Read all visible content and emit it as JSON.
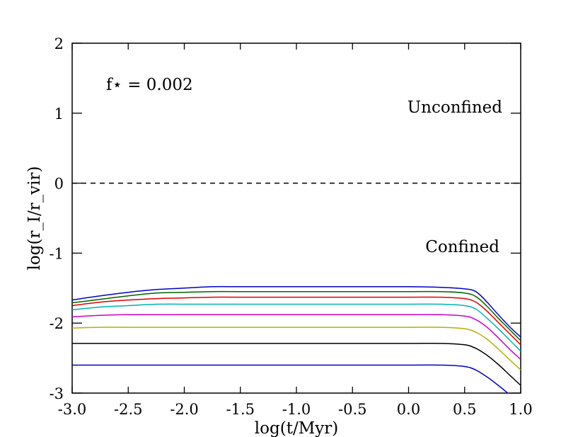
{
  "chart_data": {
    "type": "line",
    "title": "",
    "xlabel": "log(t/Myr)",
    "ylabel": "log(r_I/r_vir)",
    "xlim": [
      -3.0,
      1.0
    ],
    "ylim": [
      -3,
      2
    ],
    "xticks": [
      -3.0,
      -2.5,
      -2.0,
      -1.5,
      -1.0,
      -0.5,
      0.0,
      0.5,
      1.0
    ],
    "xtick_labels": [
      "-3.0",
      "-2.5",
      "-2.0",
      "-1.5",
      "-1.0",
      "-0.5",
      "0.0",
      "0.5",
      "1.0"
    ],
    "yticks": [
      -3,
      -2,
      -1,
      0,
      1,
      2
    ],
    "ytick_labels": [
      "-3",
      "-2",
      "-1",
      "0",
      "1",
      "2"
    ],
    "grid": false,
    "annotations": {
      "fstar": "f⋆ = 0.002",
      "unconfined": "Unconfined",
      "confined": "Confined"
    },
    "reference_line": {
      "y": 0,
      "style": "dashed",
      "color": "#000000"
    },
    "series": [
      {
        "color": "#0000cc",
        "points": [
          [
            -3.0,
            -1.67
          ],
          [
            -2.75,
            -1.61
          ],
          [
            -2.5,
            -1.56
          ],
          [
            -2.25,
            -1.52
          ],
          [
            -2.0,
            -1.5
          ],
          [
            -1.75,
            -1.48
          ],
          [
            -1.5,
            -1.48
          ],
          [
            -1.0,
            -1.48
          ],
          [
            -0.5,
            -1.48
          ],
          [
            0.0,
            -1.48
          ],
          [
            0.3,
            -1.49
          ],
          [
            0.5,
            -1.51
          ],
          [
            0.6,
            -1.55
          ],
          [
            0.7,
            -1.7
          ],
          [
            0.8,
            -1.88
          ],
          [
            0.9,
            -2.05
          ],
          [
            1.0,
            -2.2
          ]
        ]
      },
      {
        "color": "#006400",
        "points": [
          [
            -3.0,
            -1.71
          ],
          [
            -2.75,
            -1.66
          ],
          [
            -2.5,
            -1.61
          ],
          [
            -2.25,
            -1.57
          ],
          [
            -2.0,
            -1.56
          ],
          [
            -1.75,
            -1.55
          ],
          [
            -1.5,
            -1.55
          ],
          [
            -1.0,
            -1.55
          ],
          [
            -0.5,
            -1.55
          ],
          [
            0.0,
            -1.55
          ],
          [
            0.3,
            -1.55
          ],
          [
            0.5,
            -1.57
          ],
          [
            0.6,
            -1.62
          ],
          [
            0.7,
            -1.76
          ],
          [
            0.8,
            -1.93
          ],
          [
            0.9,
            -2.09
          ],
          [
            1.0,
            -2.25
          ]
        ]
      },
      {
        "color": "#dd0000",
        "points": [
          [
            -3.0,
            -1.75
          ],
          [
            -2.75,
            -1.7
          ],
          [
            -2.5,
            -1.67
          ],
          [
            -2.25,
            -1.65
          ],
          [
            -2.0,
            -1.64
          ],
          [
            -1.75,
            -1.63
          ],
          [
            -1.5,
            -1.63
          ],
          [
            -1.0,
            -1.63
          ],
          [
            -0.5,
            -1.63
          ],
          [
            0.0,
            -1.63
          ],
          [
            0.3,
            -1.63
          ],
          [
            0.5,
            -1.65
          ],
          [
            0.6,
            -1.7
          ],
          [
            0.7,
            -1.83
          ],
          [
            0.8,
            -1.99
          ],
          [
            0.9,
            -2.15
          ],
          [
            1.0,
            -2.31
          ]
        ]
      },
      {
        "color": "#00b2b2",
        "points": [
          [
            -3.0,
            -1.81
          ],
          [
            -2.75,
            -1.77
          ],
          [
            -2.5,
            -1.75
          ],
          [
            -2.25,
            -1.73
          ],
          [
            -2.0,
            -1.73
          ],
          [
            -1.75,
            -1.73
          ],
          [
            -1.5,
            -1.73
          ],
          [
            -1.0,
            -1.73
          ],
          [
            -0.5,
            -1.73
          ],
          [
            0.0,
            -1.73
          ],
          [
            0.3,
            -1.73
          ],
          [
            0.5,
            -1.75
          ],
          [
            0.6,
            -1.8
          ],
          [
            0.7,
            -1.93
          ],
          [
            0.8,
            -2.08
          ],
          [
            0.9,
            -2.24
          ],
          [
            1.0,
            -2.4
          ]
        ]
      },
      {
        "color": "#cc00cc",
        "points": [
          [
            -3.0,
            -1.91
          ],
          [
            -2.75,
            -1.89
          ],
          [
            -2.5,
            -1.88
          ],
          [
            -2.25,
            -1.88
          ],
          [
            -2.0,
            -1.88
          ],
          [
            -1.5,
            -1.88
          ],
          [
            -1.0,
            -1.88
          ],
          [
            -0.5,
            -1.88
          ],
          [
            0.0,
            -1.88
          ],
          [
            0.3,
            -1.88
          ],
          [
            0.5,
            -1.9
          ],
          [
            0.6,
            -1.95
          ],
          [
            0.7,
            -2.06
          ],
          [
            0.8,
            -2.21
          ],
          [
            0.9,
            -2.37
          ],
          [
            1.0,
            -2.52
          ]
        ]
      },
      {
        "color": "#b2b200",
        "points": [
          [
            -3.0,
            -2.07
          ],
          [
            -2.75,
            -2.06
          ],
          [
            -2.5,
            -2.06
          ],
          [
            -2.0,
            -2.06
          ],
          [
            -1.5,
            -2.06
          ],
          [
            -1.0,
            -2.06
          ],
          [
            -0.5,
            -2.06
          ],
          [
            0.0,
            -2.06
          ],
          [
            0.3,
            -2.06
          ],
          [
            0.5,
            -2.08
          ],
          [
            0.6,
            -2.13
          ],
          [
            0.7,
            -2.23
          ],
          [
            0.8,
            -2.37
          ],
          [
            0.9,
            -2.52
          ],
          [
            1.0,
            -2.67
          ]
        ]
      },
      {
        "color": "#000000",
        "points": [
          [
            -3.0,
            -2.29
          ],
          [
            -2.5,
            -2.29
          ],
          [
            -2.0,
            -2.29
          ],
          [
            -1.5,
            -2.29
          ],
          [
            -1.0,
            -2.29
          ],
          [
            -0.5,
            -2.29
          ],
          [
            0.0,
            -2.29
          ],
          [
            0.3,
            -2.29
          ],
          [
            0.5,
            -2.31
          ],
          [
            0.6,
            -2.36
          ],
          [
            0.7,
            -2.46
          ],
          [
            0.8,
            -2.59
          ],
          [
            0.9,
            -2.74
          ],
          [
            1.0,
            -2.89
          ]
        ]
      },
      {
        "color": "#0000cc",
        "points": [
          [
            -3.0,
            -2.6
          ],
          [
            -2.5,
            -2.6
          ],
          [
            -2.0,
            -2.6
          ],
          [
            -1.5,
            -2.6
          ],
          [
            -1.0,
            -2.6
          ],
          [
            -0.5,
            -2.6
          ],
          [
            0.0,
            -2.6
          ],
          [
            0.3,
            -2.6
          ],
          [
            0.5,
            -2.62
          ],
          [
            0.6,
            -2.67
          ],
          [
            0.7,
            -2.77
          ],
          [
            0.8,
            -2.89
          ],
          [
            0.9,
            -3.02
          ]
        ]
      }
    ]
  }
}
